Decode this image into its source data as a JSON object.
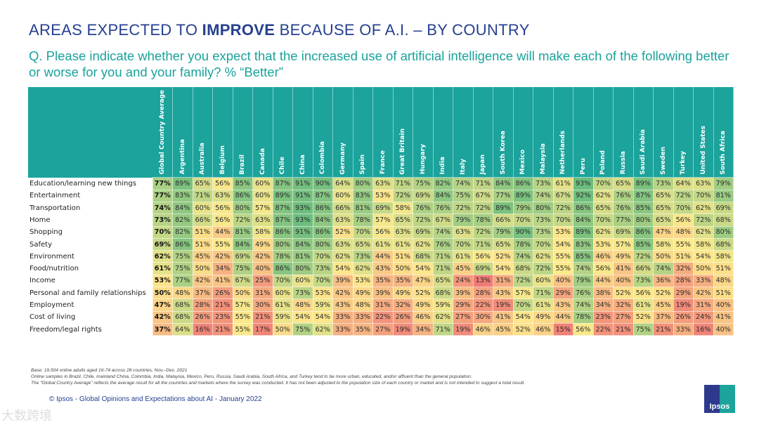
{
  "title": {
    "pre": "AREAS EXPECTED TO ",
    "bold": "IMPROVE",
    "post": " BECAUSE OF A.I. – BY COUNTRY"
  },
  "question": "Q. Please indicate whether you expect that the increased use of artificial intelligence will make each of the following better or worse for you and your family? % “Better”",
  "chart_data": {
    "type": "heatmap",
    "unit": "%",
    "columns": [
      "Global Country Average",
      "Argentina",
      "Australia",
      "Belgium",
      "Brazil",
      "Canada",
      "Chile",
      "China",
      "Colombia",
      "Germany",
      "Spain",
      "France",
      "Great Britain",
      "Hungary",
      "India",
      "Italy",
      "Japan",
      "South Korea",
      "Mexico",
      "Malaysia",
      "Netherlands",
      "Peru",
      "Poland",
      "Russia",
      "Saudi Arabia",
      "Sweden",
      "Turkey",
      "United States",
      "South Africa"
    ],
    "rows": [
      {
        "label": "Education/learning new things",
        "values": [
          77,
          89,
          65,
          56,
          85,
          60,
          87,
          91,
          90,
          64,
          80,
          63,
          71,
          75,
          82,
          74,
          71,
          84,
          86,
          73,
          61,
          93,
          70,
          65,
          89,
          73,
          64,
          63,
          79
        ]
      },
      {
        "label": "Entertainment",
        "values": [
          77,
          83,
          71,
          63,
          86,
          60,
          89,
          91,
          87,
          60,
          83,
          53,
          72,
          69,
          84,
          75,
          67,
          77,
          89,
          74,
          67,
          92,
          62,
          76,
          87,
          65,
          72,
          70,
          81
        ]
      },
      {
        "label": "Transportation",
        "values": [
          74,
          84,
          60,
          56,
          80,
          57,
          87,
          93,
          86,
          66,
          81,
          69,
          58,
          76,
          76,
          72,
          72,
          89,
          79,
          80,
          72,
          86,
          65,
          76,
          85,
          65,
          70,
          62,
          69
        ]
      },
      {
        "label": "Home",
        "values": [
          73,
          82,
          66,
          56,
          72,
          63,
          87,
          93,
          84,
          63,
          78,
          57,
          65,
          72,
          67,
          79,
          78,
          66,
          70,
          73,
          70,
          84,
          70,
          77,
          80,
          65,
          56,
          72,
          68
        ]
      },
      {
        "label": "Shopping",
        "values": [
          70,
          82,
          51,
          44,
          81,
          58,
          86,
          91,
          86,
          52,
          70,
          56,
          63,
          69,
          74,
          63,
          72,
          79,
          90,
          73,
          53,
          89,
          62,
          69,
          86,
          47,
          48,
          62,
          80
        ]
      },
      {
        "label": "Safety",
        "values": [
          69,
          86,
          51,
          55,
          84,
          49,
          80,
          84,
          80,
          63,
          65,
          61,
          61,
          62,
          76,
          70,
          71,
          65,
          78,
          70,
          54,
          83,
          53,
          57,
          85,
          58,
          55,
          58,
          68
        ]
      },
      {
        "label": "Environment",
        "values": [
          62,
          75,
          45,
          42,
          69,
          42,
          78,
          81,
          70,
          62,
          73,
          44,
          51,
          68,
          71,
          61,
          56,
          52,
          74,
          62,
          55,
          85,
          46,
          49,
          72,
          50,
          51,
          54,
          58
        ]
      },
      {
        "label": "Food/nutrition",
        "values": [
          61,
          75,
          50,
          34,
          75,
          40,
          86,
          80,
          73,
          54,
          62,
          43,
          50,
          54,
          71,
          45,
          69,
          54,
          68,
          72,
          55,
          74,
          56,
          41,
          66,
          74,
          32,
          50,
          51
        ]
      },
      {
        "label": "Income",
        "values": [
          53,
          77,
          42,
          41,
          67,
          25,
          70,
          60,
          70,
          39,
          53,
          35,
          35,
          47,
          65,
          24,
          13,
          31,
          72,
          60,
          40,
          79,
          44,
          40,
          73,
          36,
          28,
          33,
          48
        ]
      },
      {
        "label": "Personal and family relationships",
        "values": [
          50,
          48,
          37,
          26,
          50,
          31,
          60,
          73,
          53,
          42,
          49,
          39,
          49,
          52,
          68,
          39,
          28,
          43,
          57,
          71,
          29,
          76,
          38,
          52,
          56,
          52,
          29,
          42,
          51
        ]
      },
      {
        "label": "Employment",
        "values": [
          47,
          68,
          28,
          21,
          57,
          30,
          61,
          48,
          59,
          43,
          48,
          31,
          32,
          49,
          59,
          29,
          22,
          19,
          70,
          61,
          43,
          74,
          34,
          32,
          61,
          45,
          19,
          31,
          40
        ]
      },
      {
        "label": "Cost of living",
        "values": [
          42,
          68,
          26,
          23,
          55,
          21,
          59,
          54,
          54,
          33,
          33,
          22,
          26,
          46,
          62,
          27,
          30,
          41,
          54,
          49,
          44,
          78,
          23,
          27,
          52,
          37,
          26,
          24,
          41
        ]
      },
      {
        "label": "Freedom/legal rights",
        "values": [
          37,
          64,
          16,
          21,
          55,
          17,
          50,
          75,
          62,
          33,
          35,
          27,
          19,
          34,
          71,
          19,
          46,
          45,
          52,
          46,
          15,
          56,
          22,
          21,
          75,
          21,
          33,
          16,
          40
        ]
      }
    ],
    "color_scale": {
      "low": "#ef7b76",
      "mid": "#fde98b",
      "high": "#6cbd7e",
      "domain": [
        13,
        55,
        93
      ]
    }
  },
  "footnotes": [
    "Base: 19,504 online adults aged 16-74 across 28 countries, Nov.–Dec. 2021",
    "Online samples in Brazil, Chile, mainland China, Colombia, India, Malaysia, Mexico, Peru, Russia, Saudi Arabia, South Africa, and Turkey tend to be more urban, educated, and/or affluent than the general population.",
    "The “Global  Country Average” reflects the average result for all the countries and markets where the survey was conducted. It has not been adjusted to the population size of each country or market and is not intended to suggest a total result."
  ],
  "copyright": "© Ipsos - Global Opinions and Expectations about AI - January 2022",
  "logo_text": "Ipsos",
  "watermark": "大数跨境"
}
